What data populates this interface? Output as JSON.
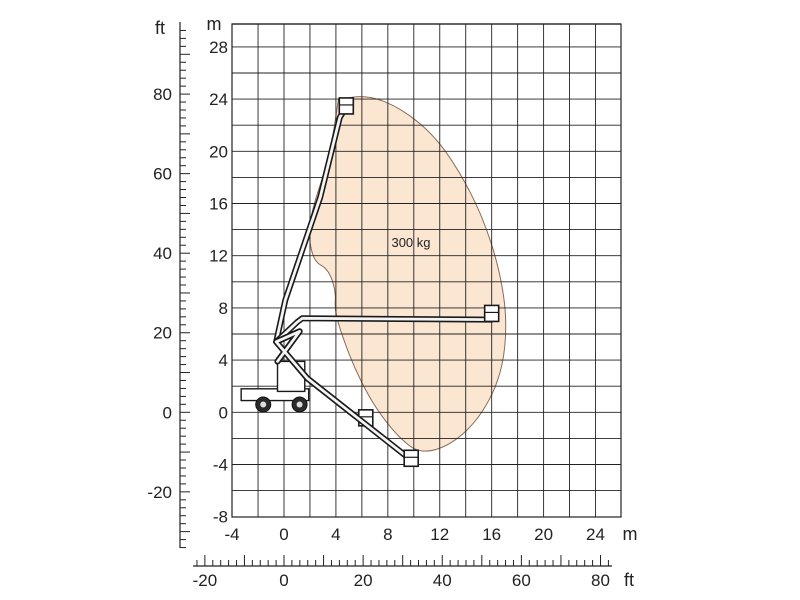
{
  "chart_data": {
    "type": "working-envelope",
    "capacity_label": "300 kg",
    "axis_units": {
      "metric_vertical": "m",
      "metric_horizontal": "m",
      "imperial_vertical": "ft",
      "imperial_horizontal": "ft"
    },
    "metric_x_ticks": [
      "-4",
      "0",
      "4",
      "8",
      "12",
      "16",
      "20",
      "24"
    ],
    "metric_y_ticks": [
      "28",
      "24",
      "20",
      "16",
      "12",
      "8",
      "4",
      "0",
      "-4",
      "-8"
    ],
    "imperial_x_ticks": [
      "-20",
      "0",
      "20",
      "40",
      "60",
      "80"
    ],
    "imperial_y_ticks": [
      "80",
      "60",
      "40",
      "20",
      "0",
      "-20"
    ],
    "xlim_m": [
      -4,
      26
    ],
    "ylim_m": [
      -8,
      29.3
    ],
    "grid": true,
    "envelope_color": "#fbe6d2",
    "envelope_m": [
      [
        4.2,
        24.0
      ],
      [
        6.5,
        24.3
      ],
      [
        9.0,
        23.3
      ],
      [
        11.5,
        21.3
      ],
      [
        13.5,
        18.5
      ],
      [
        15.3,
        15.0
      ],
      [
        16.6,
        11.0
      ],
      [
        17.2,
        7.0
      ],
      [
        16.8,
        3.0
      ],
      [
        15.2,
        -0.3
      ],
      [
        12.9,
        -2.5
      ],
      [
        10.5,
        -3.2
      ],
      [
        8.8,
        -1.9
      ],
      [
        7.0,
        0.4
      ],
      [
        5.6,
        3.0
      ],
      [
        4.5,
        5.8
      ],
      [
        3.9,
        7.8
      ],
      [
        4.0,
        9.3
      ],
      [
        3.4,
        11.0
      ],
      [
        2.2,
        11.6
      ],
      [
        1.8,
        14.5
      ],
      [
        3.5,
        19.5
      ],
      [
        4.2,
        24.0
      ]
    ],
    "boom_positions_m": [
      {
        "name": "max-height",
        "path": [
          [
            -0.5,
            3.9
          ],
          [
            1.2,
            6.2
          ],
          [
            -0.6,
            5.4
          ],
          [
            0.1,
            8.6
          ],
          [
            2.8,
            16.5
          ],
          [
            4.3,
            22.6
          ],
          [
            4.8,
            23.4
          ]
        ],
        "basket": [
          4.8,
          23.4
        ]
      },
      {
        "name": "max-outreach",
        "path": [
          [
            -0.5,
            3.9
          ],
          [
            1.2,
            6.2
          ],
          [
            -0.6,
            5.4
          ],
          [
            1.0,
            6.9
          ],
          [
            1.4,
            7.2
          ],
          [
            16.0,
            7.1
          ],
          [
            16.0,
            7.5
          ]
        ],
        "basket": [
          16.0,
          7.5
        ]
      },
      {
        "name": "below-ground-mid",
        "path": [
          [
            -0.5,
            3.9
          ],
          [
            1.2,
            6.2
          ],
          [
            -0.6,
            5.4
          ],
          [
            1.8,
            2.6
          ],
          [
            5.5,
            -0.3
          ],
          [
            6.3,
            -0.5
          ]
        ],
        "basket": [
          6.3,
          -0.5
        ]
      },
      {
        "name": "below-ground-max",
        "path": [
          [
            -0.5,
            3.9
          ],
          [
            1.2,
            6.2
          ],
          [
            -0.6,
            5.4
          ],
          [
            1.8,
            2.6
          ],
          [
            5.5,
            -0.3
          ],
          [
            9.6,
            -3.5
          ],
          [
            9.8,
            -3.6
          ]
        ],
        "basket": [
          9.8,
          -3.6
        ]
      }
    ],
    "chassis_m": {
      "wheel_centers": [
        [
          -1.6,
          0.6
        ],
        [
          1.2,
          0.6
        ]
      ],
      "body_x": [
        -3.3,
        1.9
      ],
      "body_y": [
        0.9,
        1.8
      ],
      "turret_x": [
        -0.5,
        1.6
      ],
      "turret_y": [
        1.6,
        3.9
      ]
    }
  }
}
